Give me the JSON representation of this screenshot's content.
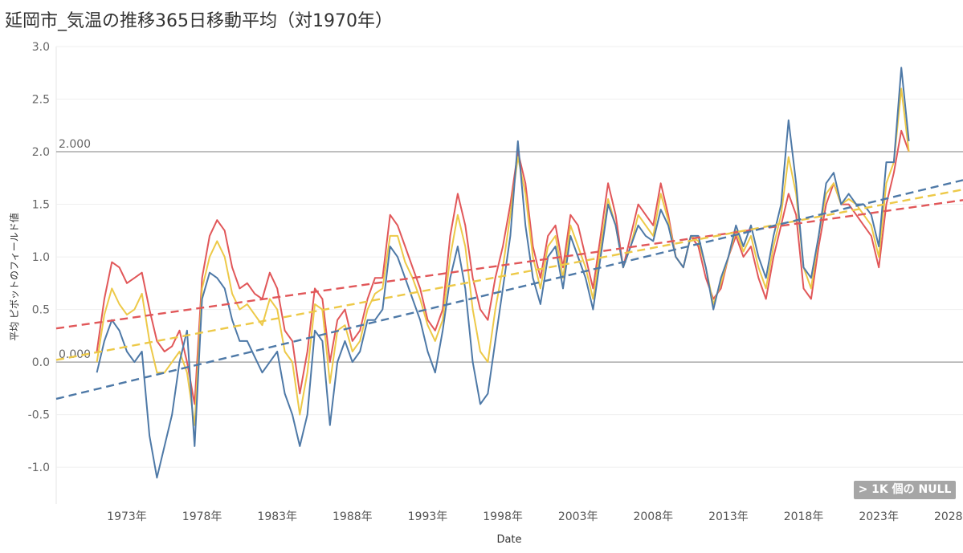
{
  "page": {
    "title": "延岡市_気温の推移365日移動平均（対1970年）"
  },
  "badge": {
    "null_label": "> 1K 個の NULL"
  },
  "chart_data": {
    "type": "line",
    "title": "延岡市_気温の推移365日移動平均（対1970年）",
    "xlabel": "Date",
    "ylabel": "平均 ピボットのフィールド値",
    "xlim": [
      1968.3,
      2028.6
    ],
    "ylim": [
      -1.35,
      3.0
    ],
    "yticks": [
      {
        "v": 3.0,
        "label": "3.0"
      },
      {
        "v": 2.5,
        "label": "2.5"
      },
      {
        "v": 2.0,
        "label": "2.0"
      },
      {
        "v": 1.5,
        "label": "1.5"
      },
      {
        "v": 1.0,
        "label": "1.0"
      },
      {
        "v": 0.5,
        "label": "0.5"
      },
      {
        "v": 0.0,
        "label": "0.0"
      },
      {
        "v": -0.5,
        "label": "-0.5"
      },
      {
        "v": -1.0,
        "label": "-1.0"
      }
    ],
    "xticks": [
      {
        "v": 1973,
        "label": "1973年"
      },
      {
        "v": 1978,
        "label": "1978年"
      },
      {
        "v": 1983,
        "label": "1983年"
      },
      {
        "v": 1988,
        "label": "1988年"
      },
      {
        "v": 1993,
        "label": "1993年"
      },
      {
        "v": 1998,
        "label": "1998年"
      },
      {
        "v": 2003,
        "label": "2003年"
      },
      {
        "v": 2008,
        "label": "2008年"
      },
      {
        "v": 2013,
        "label": "2013年"
      },
      {
        "v": 2018,
        "label": "2018年"
      },
      {
        "v": 2023,
        "label": "2023年"
      },
      {
        "v": 2028,
        "label": "2028年"
      }
    ],
    "grid": true,
    "reference_lines": [
      {
        "value": 2.0,
        "label": "2.000",
        "color": "#999999"
      },
      {
        "value": 0.0,
        "label": "0.000",
        "color": "#999999"
      }
    ],
    "series": [
      {
        "color": "#e15759",
        "x": [
          1971.0,
          1971.5,
          1972.0,
          1972.5,
          1973.0,
          1973.5,
          1974.0,
          1974.5,
          1975.0,
          1975.5,
          1976.0,
          1976.5,
          1977.0,
          1977.5,
          1978.0,
          1978.5,
          1979.0,
          1979.5,
          1980.0,
          1980.5,
          1981.0,
          1981.5,
          1982.0,
          1982.5,
          1983.0,
          1983.5,
          1984.0,
          1984.5,
          1985.0,
          1985.5,
          1986.0,
          1986.5,
          1987.0,
          1987.5,
          1988.0,
          1988.5,
          1989.0,
          1989.5,
          1990.0,
          1990.5,
          1991.0,
          1991.5,
          1992.0,
          1992.5,
          1993.0,
          1993.5,
          1994.0,
          1994.5,
          1995.0,
          1995.5,
          1996.0,
          1996.5,
          1997.0,
          1997.5,
          1998.0,
          1998.5,
          1999.0,
          1999.5,
          2000.0,
          2000.5,
          2001.0,
          2001.5,
          2002.0,
          2002.5,
          2003.0,
          2003.5,
          2004.0,
          2004.5,
          2005.0,
          2005.5,
          2006.0,
          2006.5,
          2007.0,
          2007.5,
          2008.0,
          2008.5,
          2009.0,
          2009.5,
          2010.0,
          2010.5,
          2011.0,
          2011.5,
          2012.0,
          2012.5,
          2013.0,
          2013.5,
          2014.0,
          2014.5,
          2015.0,
          2015.5,
          2016.0,
          2016.5,
          2017.0,
          2017.5,
          2018.0,
          2018.5,
          2019.0,
          2019.5,
          2020.0,
          2020.5,
          2021.0,
          2021.5,
          2022.0,
          2022.5,
          2023.0,
          2023.5,
          2024.0,
          2024.5,
          2025.0
        ],
        "y": [
          0.1,
          0.6,
          0.95,
          0.9,
          0.75,
          0.8,
          0.85,
          0.5,
          0.2,
          0.1,
          0.15,
          0.3,
          0.0,
          -0.4,
          0.8,
          1.2,
          1.35,
          1.25,
          0.9,
          0.7,
          0.75,
          0.65,
          0.6,
          0.85,
          0.7,
          0.3,
          0.2,
          -0.3,
          0.1,
          0.7,
          0.6,
          0.0,
          0.4,
          0.5,
          0.2,
          0.3,
          0.6,
          0.8,
          0.8,
          1.4,
          1.3,
          1.1,
          0.9,
          0.7,
          0.4,
          0.3,
          0.5,
          1.2,
          1.6,
          1.3,
          0.8,
          0.5,
          0.4,
          0.8,
          1.1,
          1.5,
          2.0,
          1.7,
          1.1,
          0.8,
          1.2,
          1.3,
          0.9,
          1.4,
          1.3,
          1.0,
          0.7,
          1.2,
          1.7,
          1.4,
          0.9,
          1.2,
          1.5,
          1.4,
          1.3,
          1.7,
          1.4,
          1.0,
          0.9,
          1.2,
          1.1,
          0.8,
          0.6,
          0.7,
          1.0,
          1.2,
          1.0,
          1.1,
          0.8,
          0.6,
          1.0,
          1.3,
          1.6,
          1.4,
          0.7,
          0.6,
          1.1,
          1.5,
          1.7,
          1.5,
          1.5,
          1.4,
          1.3,
          1.2,
          0.9,
          1.5,
          1.8,
          2.2,
          2.0
        ]
      },
      {
        "color": "#edc948",
        "x": [
          1971.0,
          1971.5,
          1972.0,
          1972.5,
          1973.0,
          1973.5,
          1974.0,
          1974.5,
          1975.0,
          1975.5,
          1976.0,
          1976.5,
          1977.0,
          1977.5,
          1978.0,
          1978.5,
          1979.0,
          1979.5,
          1980.0,
          1980.5,
          1981.0,
          1981.5,
          1982.0,
          1982.5,
          1983.0,
          1983.5,
          1984.0,
          1984.5,
          1985.0,
          1985.5,
          1986.0,
          1986.5,
          1987.0,
          1987.5,
          1988.0,
          1988.5,
          1989.0,
          1989.5,
          1990.0,
          1990.5,
          1991.0,
          1991.5,
          1992.0,
          1992.5,
          1993.0,
          1993.5,
          1994.0,
          1994.5,
          1995.0,
          1995.5,
          1996.0,
          1996.5,
          1997.0,
          1997.5,
          1998.0,
          1998.5,
          1999.0,
          1999.5,
          2000.0,
          2000.5,
          2001.0,
          2001.5,
          2002.0,
          2002.5,
          2003.0,
          2003.5,
          2004.0,
          2004.5,
          2005.0,
          2005.5,
          2006.0,
          2006.5,
          2007.0,
          2007.5,
          2008.0,
          2008.5,
          2009.0,
          2009.5,
          2010.0,
          2010.5,
          2011.0,
          2011.5,
          2012.0,
          2012.5,
          2013.0,
          2013.5,
          2014.0,
          2014.5,
          2015.0,
          2015.5,
          2016.0,
          2016.5,
          2017.0,
          2017.5,
          2018.0,
          2018.5,
          2019.0,
          2019.5,
          2020.0,
          2020.5,
          2021.0,
          2021.5,
          2022.0,
          2022.5,
          2023.0,
          2023.5,
          2024.0,
          2024.5,
          2025.0
        ],
        "y": [
          0.0,
          0.45,
          0.7,
          0.55,
          0.45,
          0.5,
          0.65,
          0.2,
          -0.1,
          -0.1,
          0.0,
          0.1,
          -0.1,
          -0.6,
          0.7,
          1.0,
          1.15,
          1.0,
          0.65,
          0.5,
          0.55,
          0.45,
          0.35,
          0.6,
          0.5,
          0.1,
          0.0,
          -0.5,
          -0.1,
          0.55,
          0.5,
          -0.2,
          0.3,
          0.35,
          0.1,
          0.2,
          0.5,
          0.65,
          0.7,
          1.2,
          1.2,
          0.95,
          0.8,
          0.6,
          0.35,
          0.2,
          0.4,
          1.0,
          1.4,
          1.1,
          0.5,
          0.1,
          0.0,
          0.5,
          0.9,
          1.4,
          1.95,
          1.6,
          1.0,
          0.7,
          1.1,
          1.2,
          0.8,
          1.3,
          1.1,
          0.9,
          0.6,
          1.1,
          1.55,
          1.3,
          0.9,
          1.1,
          1.4,
          1.3,
          1.2,
          1.6,
          1.35,
          1.0,
          0.9,
          1.2,
          1.15,
          0.9,
          0.55,
          0.75,
          1.0,
          1.25,
          1.05,
          1.2,
          0.9,
          0.7,
          1.1,
          1.4,
          1.95,
          1.6,
          0.9,
          0.7,
          1.2,
          1.6,
          1.7,
          1.5,
          1.55,
          1.5,
          1.4,
          1.3,
          1.0,
          1.7,
          1.9,
          2.6,
          2.0
        ]
      },
      {
        "color": "#4e79a7",
        "x": [
          1971.0,
          1971.5,
          1972.0,
          1972.5,
          1973.0,
          1973.5,
          1974.0,
          1974.5,
          1975.0,
          1975.5,
          1976.0,
          1976.5,
          1977.0,
          1977.5,
          1978.0,
          1978.5,
          1979.0,
          1979.5,
          1980.0,
          1980.5,
          1981.0,
          1981.5,
          1982.0,
          1982.5,
          1983.0,
          1983.5,
          1984.0,
          1984.5,
          1985.0,
          1985.5,
          1986.0,
          1986.5,
          1987.0,
          1987.5,
          1988.0,
          1988.5,
          1989.0,
          1989.5,
          1990.0,
          1990.5,
          1991.0,
          1991.5,
          1992.0,
          1992.5,
          1993.0,
          1993.5,
          1994.0,
          1994.5,
          1995.0,
          1995.5,
          1996.0,
          1996.5,
          1997.0,
          1997.5,
          1998.0,
          1998.5,
          1999.0,
          1999.5,
          2000.0,
          2000.5,
          2001.0,
          2001.5,
          2002.0,
          2002.5,
          2003.0,
          2003.5,
          2004.0,
          2004.5,
          2005.0,
          2005.5,
          2006.0,
          2006.5,
          2007.0,
          2007.5,
          2008.0,
          2008.5,
          2009.0,
          2009.5,
          2010.0,
          2010.5,
          2011.0,
          2011.5,
          2012.0,
          2012.5,
          2013.0,
          2013.5,
          2014.0,
          2014.5,
          2015.0,
          2015.5,
          2016.0,
          2016.5,
          2017.0,
          2017.5,
          2018.0,
          2018.5,
          2019.0,
          2019.5,
          2020.0,
          2020.5,
          2021.0,
          2021.5,
          2022.0,
          2022.5,
          2023.0,
          2023.5,
          2024.0,
          2024.5,
          2025.0
        ],
        "y": [
          -0.1,
          0.2,
          0.4,
          0.3,
          0.1,
          0.0,
          0.1,
          -0.7,
          -1.1,
          -0.8,
          -0.5,
          0.0,
          0.3,
          -0.8,
          0.6,
          0.85,
          0.8,
          0.7,
          0.4,
          0.2,
          0.2,
          0.05,
          -0.1,
          0.0,
          0.1,
          -0.3,
          -0.5,
          -0.8,
          -0.5,
          0.3,
          0.2,
          -0.6,
          0.0,
          0.2,
          0.0,
          0.1,
          0.4,
          0.4,
          0.5,
          1.1,
          1.0,
          0.8,
          0.6,
          0.4,
          0.1,
          -0.1,
          0.3,
          0.8,
          1.1,
          0.7,
          0.0,
          -0.4,
          -0.3,
          0.2,
          0.7,
          1.2,
          2.1,
          1.3,
          0.8,
          0.55,
          1.0,
          1.1,
          0.7,
          1.2,
          1.0,
          0.8,
          0.5,
          1.0,
          1.5,
          1.3,
          0.9,
          1.1,
          1.3,
          1.2,
          1.15,
          1.45,
          1.3,
          1.0,
          0.9,
          1.2,
          1.2,
          0.9,
          0.5,
          0.8,
          1.0,
          1.3,
          1.1,
          1.3,
          1.0,
          0.8,
          1.2,
          1.5,
          2.3,
          1.7,
          0.9,
          0.8,
          1.2,
          1.7,
          1.8,
          1.5,
          1.6,
          1.5,
          1.5,
          1.4,
          1.1,
          1.9,
          1.9,
          2.8,
          2.1
        ]
      }
    ],
    "trendlines": [
      {
        "color": "#e15759",
        "x": [
          1968.3,
          2028.6
        ],
        "y": [
          0.32,
          1.54
        ]
      },
      {
        "color": "#edc948",
        "x": [
          1968.3,
          2028.6
        ],
        "y": [
          0.02,
          1.64
        ]
      },
      {
        "color": "#4e79a7",
        "x": [
          1968.3,
          2028.6
        ],
        "y": [
          -0.35,
          1.73
        ]
      }
    ]
  }
}
